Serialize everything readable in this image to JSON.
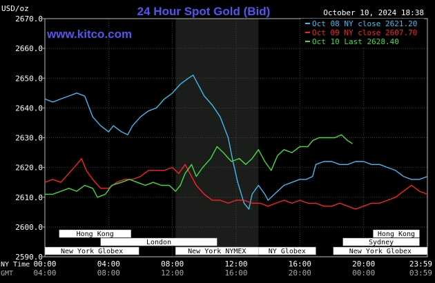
{
  "chart_data": {
    "type": "line",
    "title": "24 Hour Spot Gold (Bid)",
    "site": "www.kitco.com",
    "date_label": "October 10, 2024 18:38",
    "ylabel": "USD/oz",
    "ylim": [
      2590,
      2670
    ],
    "yticks": [
      "2670.0",
      "2660.0",
      "2650.0",
      "2640.0",
      "2630.0",
      "2620.0",
      "2610.0",
      "2600.0",
      "2590.0"
    ],
    "xlim": [
      0,
      24
    ],
    "time_rows": [
      {
        "label": "NY Time",
        "ticks": [
          "00:00",
          "04:00",
          "08:00",
          "12:00",
          "16:00",
          "20:00",
          "23:59"
        ]
      },
      {
        "label": "GMT",
        "ticks": [
          "04:00",
          "08:00",
          "12:00",
          "16:00",
          "20:00",
          "00:00",
          "03:59"
        ]
      }
    ],
    "sessions": [
      {
        "name": "Hong Kong",
        "start": 0.9,
        "end": 5.4,
        "row": 0,
        "color": "#ffffff"
      },
      {
        "name": "Hong Kong",
        "start": 20.6,
        "end": 23.5,
        "row": 0,
        "color": "#ffffff"
      },
      {
        "name": "London",
        "start": 3.5,
        "end": 10.8,
        "row": 1,
        "color": "#ffffff"
      },
      {
        "name": "Sydney",
        "start": 18.7,
        "end": 23.5,
        "row": 1,
        "color": "#ffffff"
      },
      {
        "name": "New York Globex",
        "start": 0,
        "end": 5.9,
        "row": 2,
        "color": "#ffffff"
      },
      {
        "name": "New York NYMEX",
        "start": 8.2,
        "end": 13.4,
        "row": 2,
        "color": "#ffffff"
      },
      {
        "name": "NY Globex",
        "start": 13.4,
        "end": 17.0,
        "row": 2,
        "color": "#ffffff"
      },
      {
        "name": "New York Globex",
        "start": 18.1,
        "end": 24,
        "row": 2,
        "color": "#ffffff"
      }
    ],
    "highlight": {
      "start": 8.2,
      "end": 13.4
    },
    "series": [
      {
        "name": "Oct 08 NY close 2621.20",
        "color": "#44bbee",
        "points": [
          [
            0,
            2643
          ],
          [
            0.5,
            2642
          ],
          [
            1,
            2643
          ],
          [
            1.5,
            2644
          ],
          [
            2,
            2645
          ],
          [
            2.5,
            2644
          ],
          [
            3,
            2637
          ],
          [
            3.5,
            2634
          ],
          [
            4,
            2632
          ],
          [
            4.3,
            2634
          ],
          [
            4.8,
            2632
          ],
          [
            5.2,
            2631
          ],
          [
            5.5,
            2634
          ],
          [
            6,
            2637
          ],
          [
            6.5,
            2639
          ],
          [
            7,
            2640
          ],
          [
            7.5,
            2643
          ],
          [
            8,
            2645
          ],
          [
            8.5,
            2648
          ],
          [
            9,
            2650
          ],
          [
            9.3,
            2651
          ],
          [
            9.6,
            2648
          ],
          [
            10,
            2644
          ],
          [
            10.5,
            2641
          ],
          [
            11,
            2637
          ],
          [
            11.5,
            2630
          ],
          [
            11.8,
            2622
          ],
          [
            12.1,
            2615
          ],
          [
            12.5,
            2608
          ],
          [
            12.8,
            2606
          ],
          [
            13,
            2611
          ],
          [
            13.4,
            2614
          ],
          [
            13.8,
            2611
          ],
          [
            14,
            2609
          ],
          [
            14.4,
            2611
          ],
          [
            15,
            2614
          ],
          [
            15.5,
            2615
          ],
          [
            16,
            2616
          ],
          [
            16.4,
            2616
          ],
          [
            16.8,
            2617
          ],
          [
            17,
            2621
          ],
          [
            17.5,
            2622
          ],
          [
            18,
            2622
          ],
          [
            18.5,
            2621
          ],
          [
            19,
            2621
          ],
          [
            19.5,
            2622
          ],
          [
            20,
            2622
          ],
          [
            20.5,
            2621
          ],
          [
            21,
            2621
          ],
          [
            21.5,
            2620
          ],
          [
            22,
            2619
          ],
          [
            22.5,
            2617
          ],
          [
            23,
            2616
          ],
          [
            23.5,
            2616
          ],
          [
            24,
            2617
          ]
        ]
      },
      {
        "name": "Oct 09 NY close 2607.70",
        "color": "#ff2222",
        "points": [
          [
            0,
            2615
          ],
          [
            0.5,
            2616
          ],
          [
            1,
            2615
          ],
          [
            1.5,
            2618
          ],
          [
            2,
            2621
          ],
          [
            2.3,
            2623
          ],
          [
            2.6,
            2619
          ],
          [
            3,
            2616
          ],
          [
            3.5,
            2613
          ],
          [
            4,
            2613
          ],
          [
            4.5,
            2615
          ],
          [
            5,
            2616
          ],
          [
            5.5,
            2616
          ],
          [
            6,
            2617
          ],
          [
            6.5,
            2619
          ],
          [
            7,
            2619
          ],
          [
            7.5,
            2619
          ],
          [
            8,
            2620
          ],
          [
            8.4,
            2618
          ],
          [
            8.8,
            2621
          ],
          [
            9.2,
            2617
          ],
          [
            9.5,
            2614
          ],
          [
            10,
            2611
          ],
          [
            10.5,
            2609
          ],
          [
            11,
            2609
          ],
          [
            11.5,
            2608
          ],
          [
            12,
            2609
          ],
          [
            12.5,
            2609
          ],
          [
            13,
            2608
          ],
          [
            13.5,
            2608
          ],
          [
            14,
            2607
          ],
          [
            14.5,
            2608
          ],
          [
            15,
            2609
          ],
          [
            15.5,
            2608
          ],
          [
            16,
            2609
          ],
          [
            16.5,
            2608
          ],
          [
            17,
            2608
          ],
          [
            17.5,
            2607
          ],
          [
            18,
            2607
          ],
          [
            18.5,
            2608
          ],
          [
            19,
            2607
          ],
          [
            19.5,
            2606
          ],
          [
            20,
            2607
          ],
          [
            20.5,
            2608
          ],
          [
            21,
            2608
          ],
          [
            21.5,
            2609
          ],
          [
            22,
            2610
          ],
          [
            22.5,
            2612
          ],
          [
            23,
            2614
          ],
          [
            23.5,
            2612
          ],
          [
            24,
            2611
          ]
        ]
      },
      {
        "name": "Oct 10 Last 2628.40",
        "color": "#44dd44",
        "points": [
          [
            0,
            2611
          ],
          [
            0.5,
            2611
          ],
          [
            1,
            2612
          ],
          [
            1.5,
            2613
          ],
          [
            2,
            2612
          ],
          [
            2.5,
            2614
          ],
          [
            3,
            2613
          ],
          [
            3.3,
            2610
          ],
          [
            3.8,
            2611
          ],
          [
            4.2,
            2614
          ],
          [
            4.8,
            2615
          ],
          [
            5.3,
            2616
          ],
          [
            5.8,
            2615
          ],
          [
            6.3,
            2614
          ],
          [
            6.8,
            2615
          ],
          [
            7.3,
            2614
          ],
          [
            7.8,
            2614
          ],
          [
            8.2,
            2612
          ],
          [
            8.5,
            2614
          ],
          [
            8.8,
            2618
          ],
          [
            9.2,
            2621
          ],
          [
            9.5,
            2617
          ],
          [
            9.9,
            2620
          ],
          [
            10.4,
            2623
          ],
          [
            10.8,
            2627
          ],
          [
            11.2,
            2625
          ],
          [
            11.7,
            2622
          ],
          [
            12.2,
            2623
          ],
          [
            12.6,
            2621
          ],
          [
            13,
            2623
          ],
          [
            13.4,
            2626
          ],
          [
            13.8,
            2622
          ],
          [
            14.2,
            2619
          ],
          [
            14.6,
            2624
          ],
          [
            15,
            2626
          ],
          [
            15.5,
            2625
          ],
          [
            16,
            2627
          ],
          [
            16.5,
            2627
          ],
          [
            16.8,
            2629
          ],
          [
            17.2,
            2630
          ],
          [
            17.7,
            2630
          ],
          [
            18.2,
            2630
          ],
          [
            18.6,
            2631
          ],
          [
            19,
            2629
          ],
          [
            19.3,
            2628
          ]
        ]
      }
    ]
  }
}
